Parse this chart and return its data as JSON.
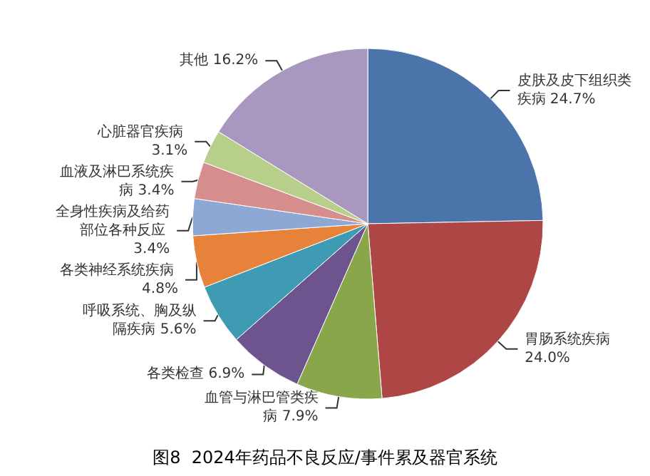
{
  "chart_data": {
    "type": "pie",
    "title": "图8  2024年药品不良反应/事件累及器官系统",
    "categories": [
      "皮肤及皮下组织类疾病",
      "胃肠系统疾病",
      "血管与淋巴管类疾病",
      "各类检查",
      "呼吸系统、胸及纵隔疾病",
      "各类神经系统疾病",
      "全身性疾病及给药部位各种反应",
      "血液及淋巴系统疾病",
      "心脏器官疾病",
      "其他"
    ],
    "values": [
      24.7,
      24.0,
      7.9,
      6.9,
      5.6,
      4.8,
      3.4,
      3.4,
      3.1,
      16.2
    ],
    "value_labels": [
      "24.7%",
      "24.0%",
      "7.9%",
      "6.9%",
      "5.6%",
      "4.8%",
      "3.4%",
      "3.4%",
      "3.1%",
      "16.2%"
    ],
    "colors": [
      "#4a74aa",
      "#ad4645",
      "#8aa64a",
      "#6e548f",
      "#3f9ab3",
      "#e6823a",
      "#8ea8d6",
      "#d58e8c",
      "#b7cf8a",
      "#a897bf"
    ]
  }
}
